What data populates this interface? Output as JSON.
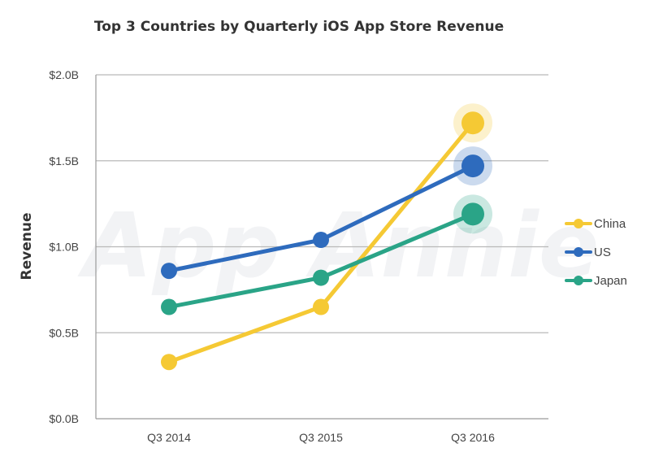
{
  "chart_data": {
    "type": "line",
    "title": "Top 3 Countries by Quarterly iOS App Store Revenue",
    "ylabel": "Revenue",
    "xlabel": "",
    "categories": [
      "Q3 2014",
      "Q3 2015",
      "Q3 2016"
    ],
    "y_ticks": [
      "$0.0B",
      "$0.5B",
      "$1.0B",
      "$1.5B",
      "$2.0B"
    ],
    "ylim": [
      0,
      2.0
    ],
    "grid": true,
    "legend_position": "right",
    "watermark": "App Annie",
    "series": [
      {
        "name": "China",
        "color": "#f5c934",
        "values": [
          0.33,
          0.65,
          1.72
        ]
      },
      {
        "name": "US",
        "color": "#2e6bbd",
        "values": [
          0.86,
          1.04,
          1.47
        ]
      },
      {
        "name": "Japan",
        "color": "#2aa487",
        "values": [
          0.65,
          0.82,
          1.19
        ]
      }
    ]
  }
}
